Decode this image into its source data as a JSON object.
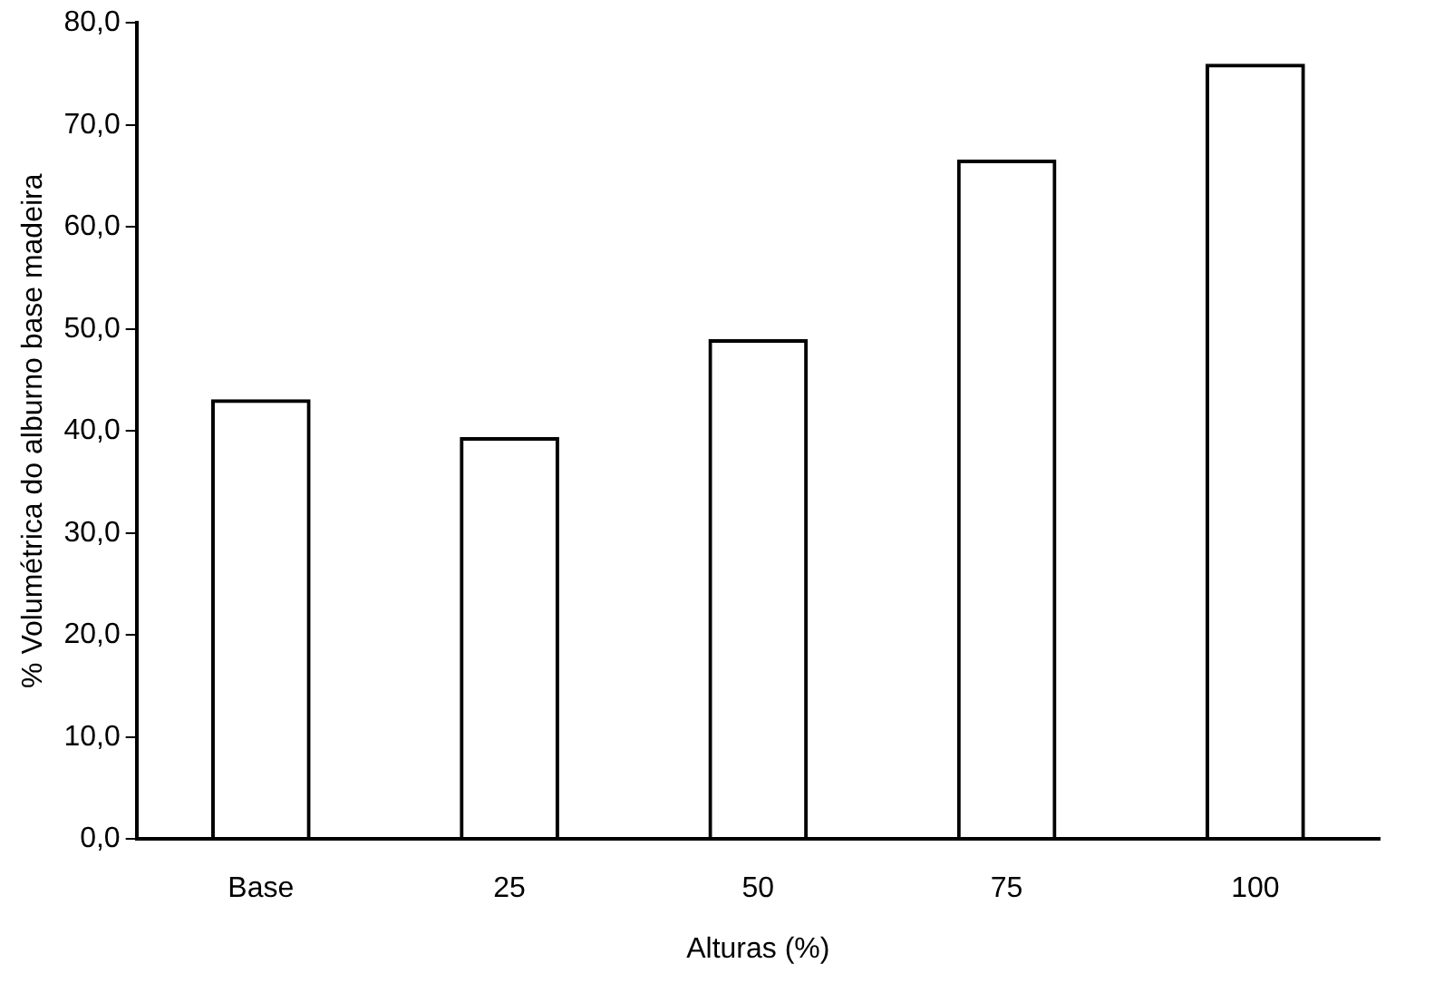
{
  "chart_data": {
    "type": "bar",
    "xlabel": "Alturas (%)",
    "ylabel": "% Volumétrica do alburno base madeira",
    "categories": [
      "Base",
      "25",
      "50",
      "75",
      "100"
    ],
    "values": [
      43.1,
      39.4,
      49.0,
      66.6,
      76.0
    ],
    "color": "#000000",
    "ylim": [
      0,
      80
    ],
    "yticks": [
      {
        "value": 0,
        "label": "0,0"
      },
      {
        "value": 10,
        "label": "10,0"
      },
      {
        "value": 20,
        "label": "20,0"
      },
      {
        "value": 30,
        "label": "30,0"
      },
      {
        "value": 40,
        "label": "40,0"
      },
      {
        "value": 50,
        "label": "50,0"
      },
      {
        "value": 60,
        "label": "60,0"
      },
      {
        "value": 70,
        "label": "70,0"
      },
      {
        "value": 80,
        "label": "80,0"
      }
    ],
    "grid": false,
    "legend": false
  }
}
